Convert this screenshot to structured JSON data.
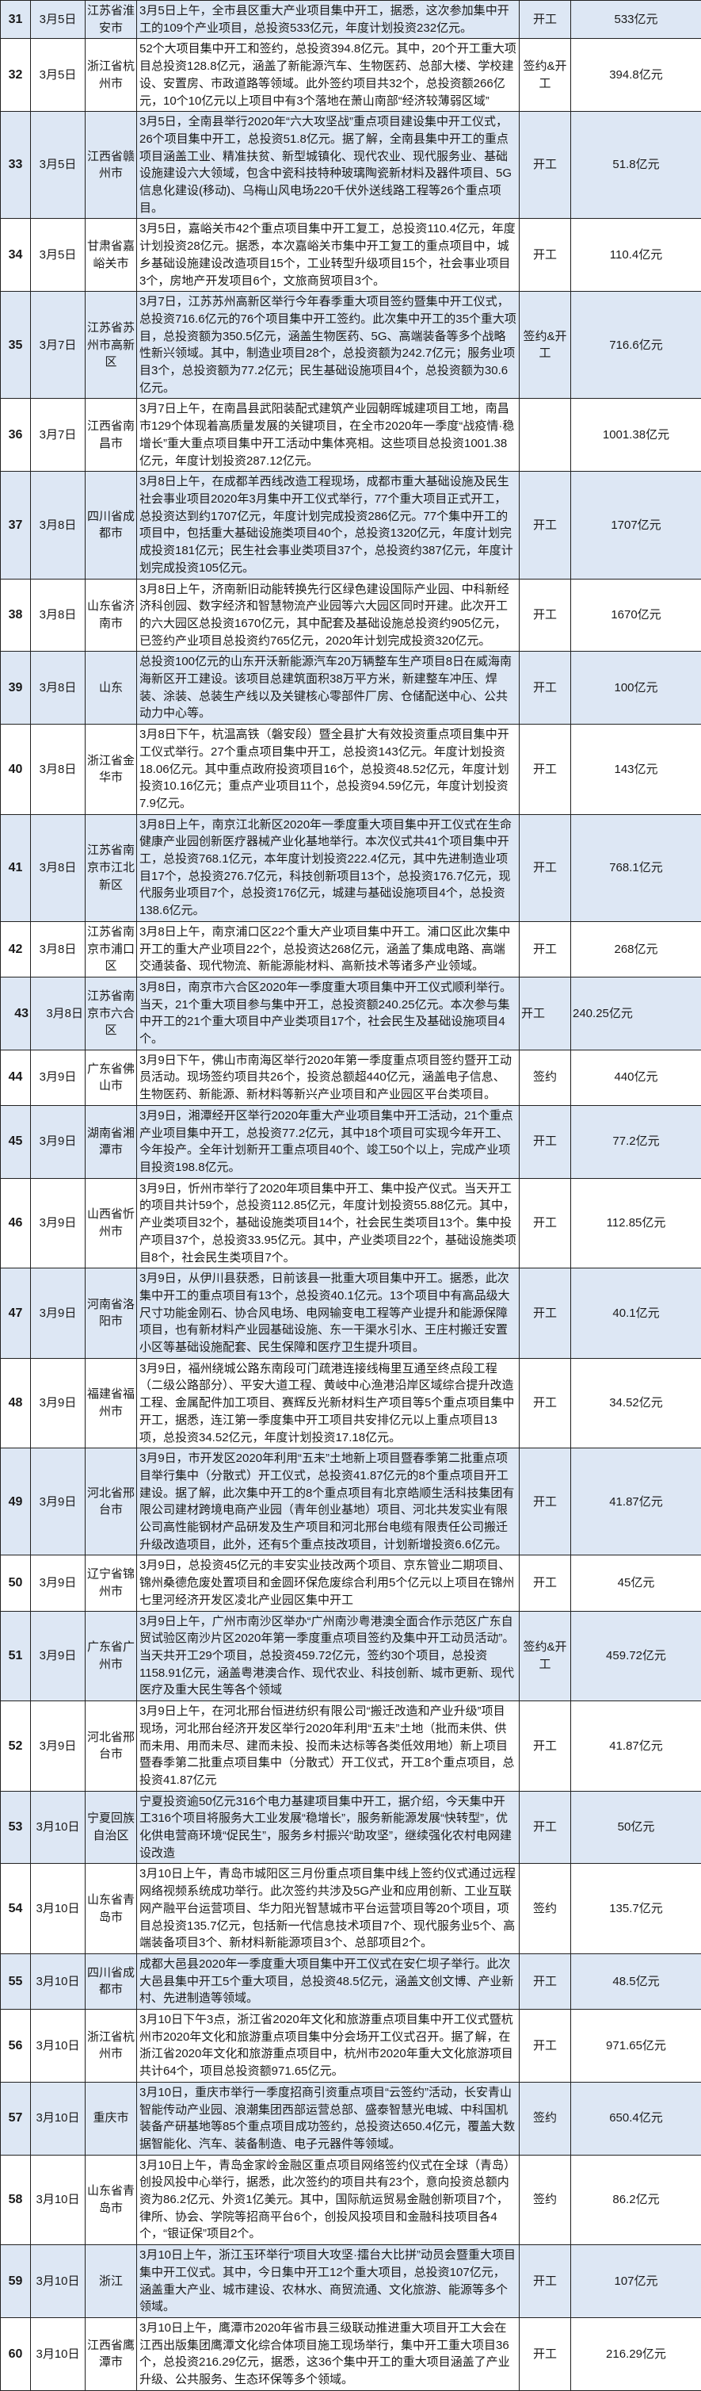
{
  "colors": {
    "row_alt": "#dde7f4",
    "row": "#ffffff",
    "border": "#222222"
  },
  "rows": [
    {
      "no": "31",
      "date": "3月5日",
      "region": "江苏省淮安市",
      "desc": "3月5日上午，全市县区重大产业项目集中开工，据悉，这次参加集中开工的109个产业项目，总投资533亿元，年度计划投资232亿元。",
      "type": "开工",
      "amount": "533亿元"
    },
    {
      "no": "32",
      "date": "3月5日",
      "region": "浙江省杭州市",
      "desc": "52个大项目集中开工和签约，总投资394.8亿元。其中，20个开工重大项目总投资128.8亿元，涵盖了新能源汽车、生物医药、总部大楼、学校建设、安置房、市政道路等领域。此外签约项目共32个，总投资额266亿元，10个10亿元以上项目中有3个落地在萧山南部“经济较薄弱区域”",
      "type": "签约&开工",
      "amount": "394.8亿元"
    },
    {
      "no": "33",
      "date": "3月5日",
      "region": "江西省赣州市",
      "desc": "3月5日，全南县举行2020年“六大攻坚战”重点项目建设集中开工仪式，26个项目集中开工，总投资51.8亿元。据了解，全南县集中开工的重点项目涵盖工业、精准扶贫、新型城镇化、现代农业、现代服务业、基础设施建设六大领域，包含中瓷科技特种玻璃陶瓷新材料及器件项目、5G信息化建设(移动)、乌梅山风电场220千伏外送线路工程等26个重点项目。",
      "type": "开工",
      "amount": "51.8亿元"
    },
    {
      "no": "34",
      "date": "3月5日",
      "region": "甘肃省嘉峪关市",
      "desc": "3月5日，嘉峪关市42个重点项目集中开工复工，总投资110.4亿元，年度计划投资28亿元。据悉，本次嘉峪关市集中开工复工的重点项目中，城乡基础设施建设改造项目15个，工业转型升级项目15个，社会事业项目3个，房地产开发项目6个，文旅商贸项目3个。",
      "type": "开工",
      "amount": "110.4亿元"
    },
    {
      "no": "35",
      "date": "3月7日",
      "region": "江苏省苏州市高新区",
      "desc": "3月7日，江苏苏州高新区举行今年春季重大项目签约暨集中开工仪式，总投资716.6亿元的76个项目集中开工签约。此次集中开工的35个重大项目，总投资额为350.5亿元，涵盖生物医药、5G、高端装备等多个战略性新兴领域。其中，制造业项目28个，总投资额为242.7亿元；服务业项目3个，总投资额为77.2亿元；民生基础设施项目4个，总投资额为30.6亿元。",
      "type": "签约&开工",
      "amount": "716.6亿元"
    },
    {
      "no": "36",
      "date": "3月7日",
      "region": "江西省南昌市",
      "desc": "3月7日上午，在南昌县武阳装配式建筑产业园朝晖城建项目工地，南昌市129个体现着高质量发展的关键项目，在全市2020年一季度“战疫情·稳增长”重大重点项目集中开工活动中集体亮相。这些项目总投资1001.38亿元，年度计划投资287.12亿元。",
      "type": "",
      "amount": "1001.38亿元"
    },
    {
      "no": "37",
      "date": "3月8日",
      "region": "四川省成都市",
      "desc": "3月8日上午，在成都羊西线改造工程现场，成都市重大基础设施及民生社会事业项目2020年3月集中开工仪式举行，77个重大项目正式开工，总投资达到约1707亿元，年度计划完成投资286亿元。77个集中开工的项目中，包括重大基础设施类项目40个，总投资1320亿元，年度计划完成投资181亿元；民生社会事业类项目37个，总投资约387亿元，年度计划完成投资105亿元。",
      "type": "开工",
      "amount": "1707亿元"
    },
    {
      "no": "38",
      "date": "3月8日",
      "region": "山东省济南市",
      "desc": "3月8日上午，济南新旧动能转换先行区绿色建设国际产业园、中科新经济科创园、数字经济和智慧物流产业园等六大园区同时开建。此次开工的六大园区总投资1670亿元，其中配套及基础设施总投资约905亿元，已签约产业项目总投资约765亿元，2020年计划完成投资320亿元。",
      "type": "开工",
      "amount": "1670亿元"
    },
    {
      "no": "39",
      "date": "3月8日",
      "region": "山东",
      "desc": "总投资100亿元的山东开沃新能源汽车20万辆整车生产项目8日在威海南海新区开工建设。该项目总建筑面积38万平方米，新建整车冲压、焊装、涂装、总装生产线以及关键核心零部件厂房、仓储配送中心、公共动力中心等。",
      "type": "开工",
      "amount": "100亿元"
    },
    {
      "no": "40",
      "date": "3月8日",
      "region": "浙江省金华市",
      "desc": "3月8日下午，杭温高铁（磐安段）暨全县扩大有效投资重点项目集中开工仪式举行。27个重点项目集中开工，总投资143亿元。年度计划投资18.06亿元。其中重点政府投资项目16个，总投资48.52亿元，年度计划投资10.16亿元；重点产业项目11个，总投资94.59亿元，年度计划投资7.9亿元。",
      "type": "开工",
      "amount": "143亿元"
    },
    {
      "no": "41",
      "date": "3月8日",
      "region": "江苏省南京市江北新区",
      "desc": "3月8日上午，南京江北新区2020年一季度重大项目集中开工仪式在生命健康产业园创新医疗器械产业化基地举行。本次仪式共41个项目集中开工，总投资768.1亿元，本年度计划投资222.4亿元，其中先进制造业项目17个，总投资276.7亿元，科技创新项目13个，总投资176.7亿元，现代服务业项目7个，总投资176亿元，城建与基础设施项目4个，总投资138.6亿元。",
      "type": "开工",
      "amount": "768.1亿元"
    },
    {
      "no": "42",
      "date": "3月8日",
      "region": "江苏省南京市浦口区",
      "desc": "3月8日上午，南京浦口区22个重大产业项目集中开工。浦口区此次集中开工的重大产业项目22个，总投资达268亿元，涵盖了集成电路、高端交通装备、现代物流、新能源能材料、高新技术等诸多产业领域。",
      "type": "开工",
      "amount": "268亿元"
    },
    {
      "no": "43",
      "date": "3月8日",
      "region": "江苏省南京市六合区",
      "desc": "3月8日，南京市六合区2020年一季度重大项目集中开工仪式顺利举行。当天，21个重大项目参与集中开工，总投资额240.25亿元。本次参与集中开工的21个重大项目中产业类项目17个，社会民生及基础设施项目4个。",
      "type": "开工",
      "amount": "240.25亿元"
    },
    {
      "no": "44",
      "date": "3月9日",
      "region": "广东省佛山市",
      "desc": "3月9日下午，佛山市南海区举行2020年第一季度重点项目签约暨开工动员活动。现场签约项目共26个，投资总额超440亿元，涵盖电子信息、生物医药、新能源、新材料等新兴产业项目和产业园区平台类项目。",
      "type": "签约",
      "amount": "440亿元"
    },
    {
      "no": "45",
      "date": "3月9日",
      "region": "湖南省湘潭市",
      "desc": "3月9日，湘潭经开区举行2020年重大产业项目集中开工活动，21个重点产业项目集中开工，总投资77.2亿元，其中18个项目可实现今年开工、今年投产。全年计划新开工重点项目40个、竣工50个以上，完成产业项目投资198.8亿元。",
      "type": "开工",
      "amount": "77.2亿元"
    },
    {
      "no": "46",
      "date": "3月9日",
      "region": "山西省忻州市",
      "desc": "3月9日，忻州市举行了2020年项目集中开工、集中投产仪式。当天开工的项目共计59个，总投资112.85亿元，年度计划投资55.88亿元。其中，产业类项目32个，基础设施类项目14个，社会民生类项目13个。集中投产项目37个，总投资33.95亿元。其中，产业类项目22个，基础设施类项目8个，社会民生类项目7个。",
      "type": "开工",
      "amount": "112.85亿元"
    },
    {
      "no": "47",
      "date": "3月9日",
      "region": "河南省洛阳市",
      "desc": "3月9日，从伊川县获悉，日前该县一批重大项目集中开工。据悉，此次集中开工的重点项目有13个，总投资40.1亿元。13个项目中有高品级大尺寸功能金刚石、协合风电场、电网输变电工程等产业提升和能源保障项目，也有新材料产业园基础设施、东一干渠水引水、王庄村搬迁安置小区等基础设施配套、民生保障和医疗卫生提升项目。",
      "type": "开工",
      "amount": "40.1亿元"
    },
    {
      "no": "48",
      "date": "3月9日",
      "region": "福建省福州市",
      "desc": "3月9日，福州绕城公路东南段可门疏港连接线梅里互通至终点段工程（二级公路部分）、平安大道工程、黄岐中心渔港沿岸区域综合提升改造工程、金属配件加工项目、赛辉反光新材料生产项目等5个重点项目集中开工，据悉，连江第一季度集中开工项目共安排亿元以上重点项目13项，总投资34.52亿元，年度计划投资17.18亿元。",
      "type": "开工",
      "amount": "34.52亿元"
    },
    {
      "no": "49",
      "date": "3月9日",
      "region": "河北省邢台市",
      "desc": "3月9日，市开发区2020年利用“五未”土地新上项目暨春季第二批重点项目举行集中（分散式）开工仪式，总投资41.87亿元的8个重点项目开工建设。据了解，此次集中开工的8个重点项目有北京皓顺生活科技集团有限公司建材跨境电商产业园（青年创业基地）项目、河北共发实业有限公司高性能钢材产品研发及生产项目和河北邢台电缆有限责任公司搬迁升级改造项目，此外，还有5个重点技改项目，计划新增投资6.6亿元。",
      "type": "开工",
      "amount": "41.87亿元"
    },
    {
      "no": "50",
      "date": "3月9日",
      "region": "辽宁省锦州市",
      "desc": "3月9日，总投资45亿元的丰安实业技改两个项目、京东管业二期项目、锦州桑德危废处置项目和金圆环保危废综合利用5个亿元以上项目在锦州七里河经济开发区凌北产业园区集中开工",
      "type": "开工",
      "amount": "45亿元"
    },
    {
      "no": "51",
      "date": "3月9日",
      "region": "广东省广州市",
      "desc": "3月9日上午，广州市南沙区举办“广州南沙粤港澳全面合作示范区广东自贸试验区南沙片区2020年第一季度重点项目签约及集中开工动员活动”。当天共开工29个项目，总投资459.72亿元，签约30个项目，总投资1158.91亿元，涵盖粤港澳合作、现代农业、科技创新、城市更新、现代医疗及重大民生等各个领域",
      "type": "签约&开工",
      "amount": "459.72亿元"
    },
    {
      "no": "52",
      "date": "3月9日",
      "region": "河北省邢台市",
      "desc": "3月9日上午，在河北邢台恒进纺织有限公司“搬迁改造和产业升级”项目现场，河北邢台经济开发区举行2020年利用“五未”土地（批而未供、供而未用、用而未尽、建而未投、投而未达标等各类低效用地）新上项目暨春季第二批重点项目集中（分散式）开工仪式，开工8个重点项目，总投资41.87亿元",
      "type": "开工",
      "amount": "41.87亿元"
    },
    {
      "no": "53",
      "date": "3月10日",
      "region": "宁夏回族自治区",
      "desc": "宁夏投资逾50亿元316个电力基建项目集中开工，据介绍，今天集中开工316个项目将服务大工业发展“稳增长”，服务新能源发展“快转型”，优化供电营商环境“促民生”，服务乡村振兴“助攻坚”，继续强化农村电网建设改造",
      "type": "开工",
      "amount": "50亿元"
    },
    {
      "no": "54",
      "date": "3月10日",
      "region": "山东省青岛市",
      "desc": "3月10日上午，青岛市城阳区三月份重点项目集中线上签约仪式通过远程网络视频系统成功举行。此次签约共涉及5G产业和应用创新、工业互联网产融平台运营项目、华力阳光智慧城市平台运营项目等20个项目，项目总投资135.7亿元，包括新一代信息技术项目7个、现代服务业5个、高端装备项目3个、新材料新能源项目3个、总部项目2个。",
      "type": "签约",
      "amount": "135.7亿元"
    },
    {
      "no": "55",
      "date": "3月10日",
      "region": "四川省成都市",
      "desc": "成都大邑县2020年一季度重大项目集中开工仪式在安仁坝子举行。此次大邑县集中开工5个重大项目，总投资48.5亿元，涵盖文创文博、产业新村、先进制造等领域。",
      "type": "开工",
      "amount": "48.5亿元"
    },
    {
      "no": "56",
      "date": "3月10日",
      "region": "浙江省杭州市",
      "desc": "3月10日下午3点，浙江省2020年文化和旅游重点项目集中开工仪式暨杭州市2020年文化和旅游重点项目集中分会场开工仪式召开。据了解，在浙江省2020年文化和旅游重点项目中，杭州市2020年重大文化旅游项目共计64个，项目总投资额971.65亿元。",
      "type": "开工",
      "amount": "971.65亿元"
    },
    {
      "no": "57",
      "date": "3月10日",
      "region": "重庆市",
      "desc": "3月10日，重庆市举行一季度招商引资重点项目“云签约”活动，长安青山智能传动产业园、浪潮集团西部运营总部、盛泰智慧光电城、中科国机装备产研基地等85个重点项目成功签约，总投资达650.4亿元，覆盖大数据智能化、汽车、装备制造、电子元器件等领域。",
      "type": "签约",
      "amount": "650.4亿元"
    },
    {
      "no": "58",
      "date": "3月10日",
      "region": "山东省青岛市",
      "desc": "3月10日上午，青岛金家岭金融区重点项目网络签约仪式在全球（青岛）创投风投中心举行，据悉，此次签约的项目共有23个，意向投资总额内资为86.2亿元、外资1亿美元。其中，国际航运贸易金融创新项目7个，律所、协会、学院等招商平台6个，创投风投项目和金融科技项目各4个，“银证保”项目2个。",
      "type": "签约",
      "amount": "86.2亿元"
    },
    {
      "no": "59",
      "date": "3月10日",
      "region": "浙江",
      "desc": "3月10日上午，浙江玉环举行“项目大攻坚·擂台大比拼”动员会暨重大项目集中开工仪式。其中，今日集中开工12个重大项目，总投资107亿元，涵盖重大产业、城市建设、农林水、商贸流通、文化旅游、能源等多个领域。",
      "type": "开工",
      "amount": "107亿元"
    },
    {
      "no": "60",
      "date": "3月10日",
      "region": "江西省鹰潭市",
      "desc": "3月10日上午，鹰潭市2020年省市县三级联动推进重大项目开工大会在江西出版集团鹰潭文化综合体项目施工现场举行，集中开工重大项目36个，总投资216.29亿元，据悉，这36个集中开工的重大项目涵盖了产业升级、公共服务、生态环保等多个领域。",
      "type": "开工",
      "amount": "216.29亿元"
    }
  ]
}
